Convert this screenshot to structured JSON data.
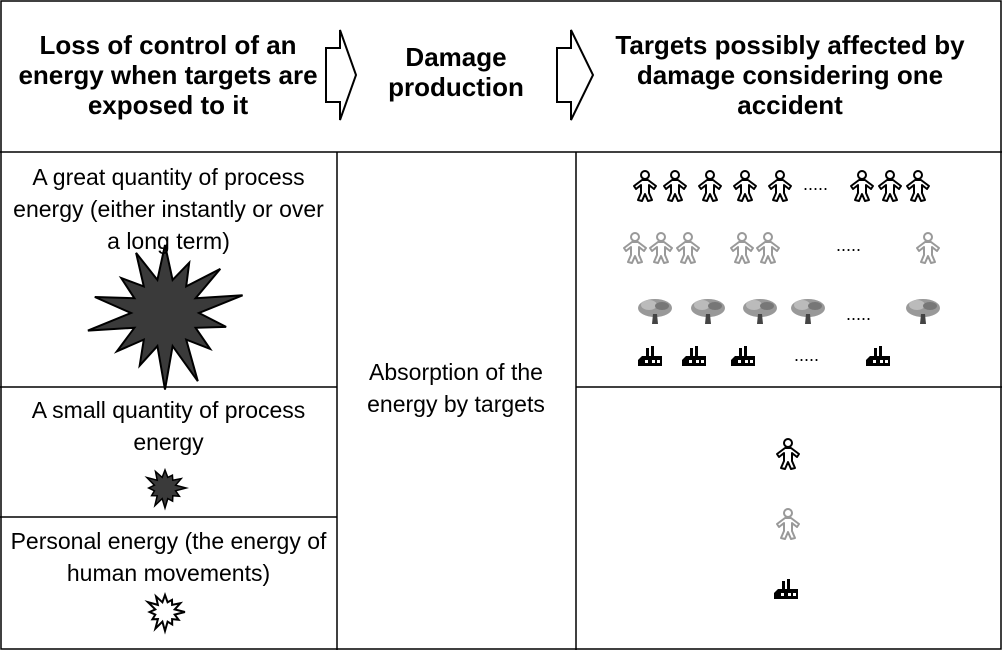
{
  "header": {
    "columns": [
      "Loss of control of an energy when targets are exposed to it",
      "Damage production",
      "Targets possibly affected by damage considering one accident"
    ]
  },
  "energies": [
    "A great quantity of process energy (either instantly or over a long term)",
    "A small quantity of process energy",
    "Personal energy (the energy of human movements)"
  ],
  "damage": "Absorption of the energy by targets",
  "ellipses": [
    ".....",
    ".....",
    ".....",
    "....."
  ]
}
